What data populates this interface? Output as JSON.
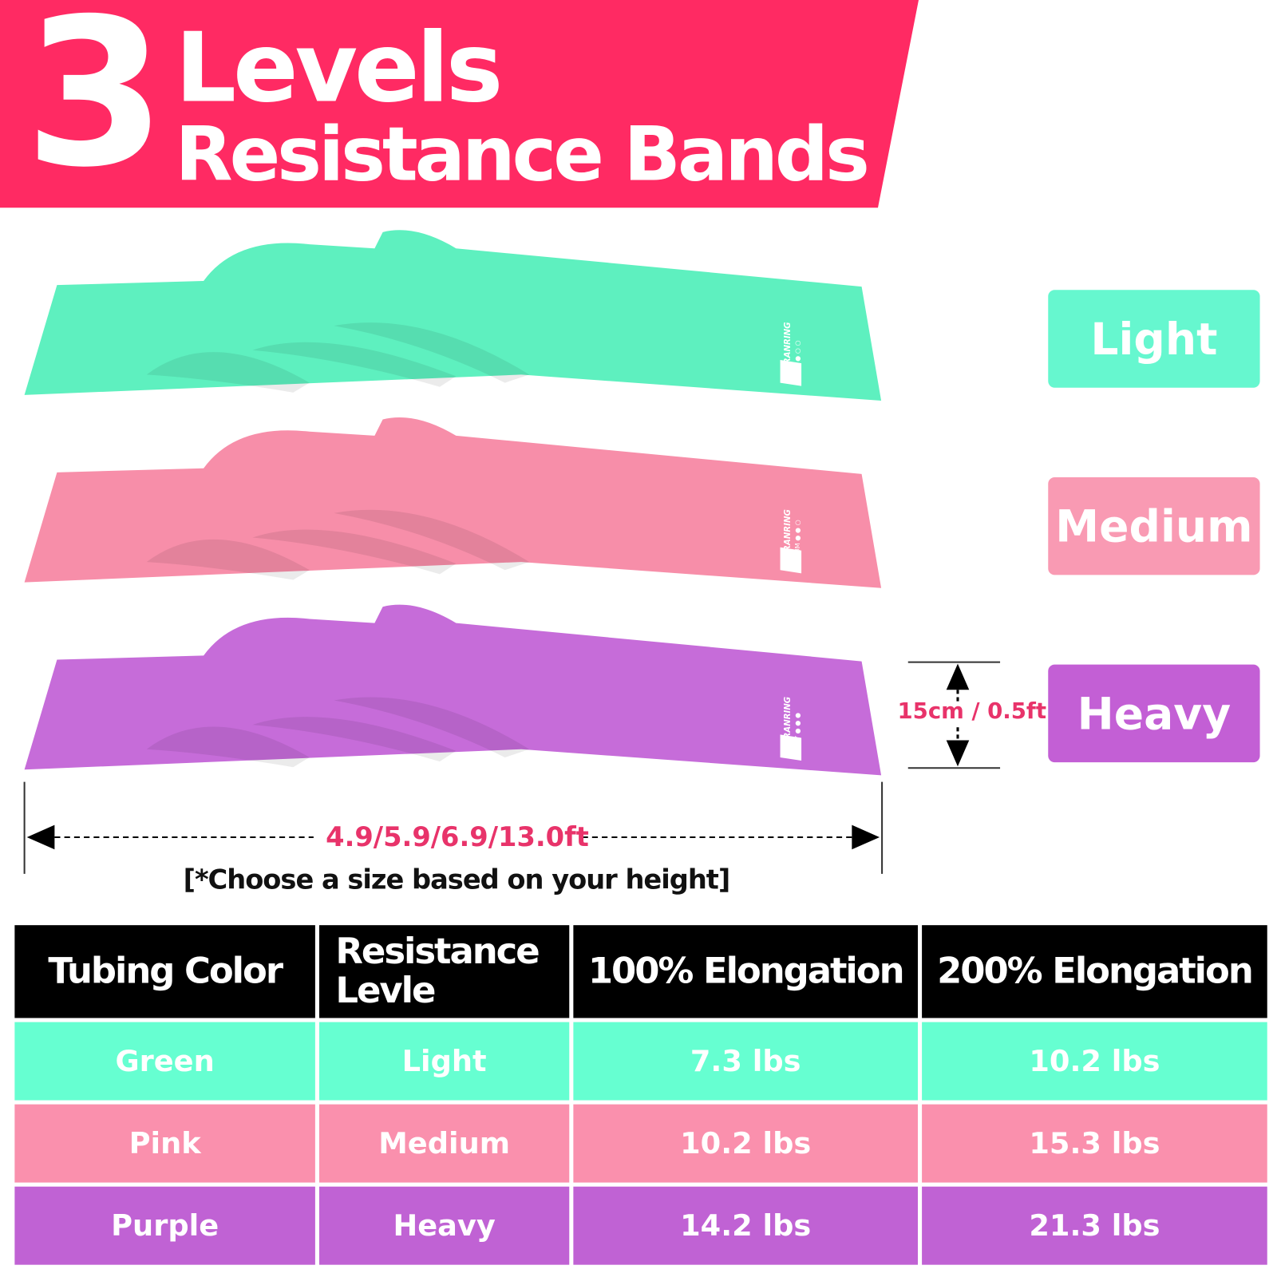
{
  "header": {
    "number": "3",
    "line1": "Levels",
    "line2": "Resistance Bands"
  },
  "colors": {
    "banner": "#ff2a63",
    "green": "#66ffd1",
    "pink": "#fa90ad",
    "purple": "#c062d4",
    "band_green": "#5ef0bf",
    "band_pink": "#f78ea9",
    "band_purple": "#c66cd9"
  },
  "bands": [
    {
      "brand": "RENRANRING",
      "tag": "LIGTH ● ○ ○",
      "level": "Light"
    },
    {
      "brand": "RENRANRING",
      "tag": "MEDIUM ● ● ○",
      "level": "Medium"
    },
    {
      "brand": "RENRANRING",
      "tag": "HEAVY ● ● ●",
      "level": "Heavy"
    }
  ],
  "dimensions": {
    "width": "15cm / 0.5ft",
    "length": "4.9/5.9/6.9/13.0ft",
    "note": "[*Choose a size based on your height]"
  },
  "table": {
    "headers": [
      "Tubing Color",
      "Resistance Levle",
      "100% Elongation",
      "200% Elongation"
    ],
    "rows": [
      [
        "Green",
        "Light",
        "7.3 lbs",
        "10.2 lbs"
      ],
      [
        "Pink",
        "Medium",
        "10.2 lbs",
        "15.3 lbs"
      ],
      [
        "Purple",
        "Heavy",
        "14.2 lbs",
        "21.3 lbs"
      ]
    ]
  }
}
